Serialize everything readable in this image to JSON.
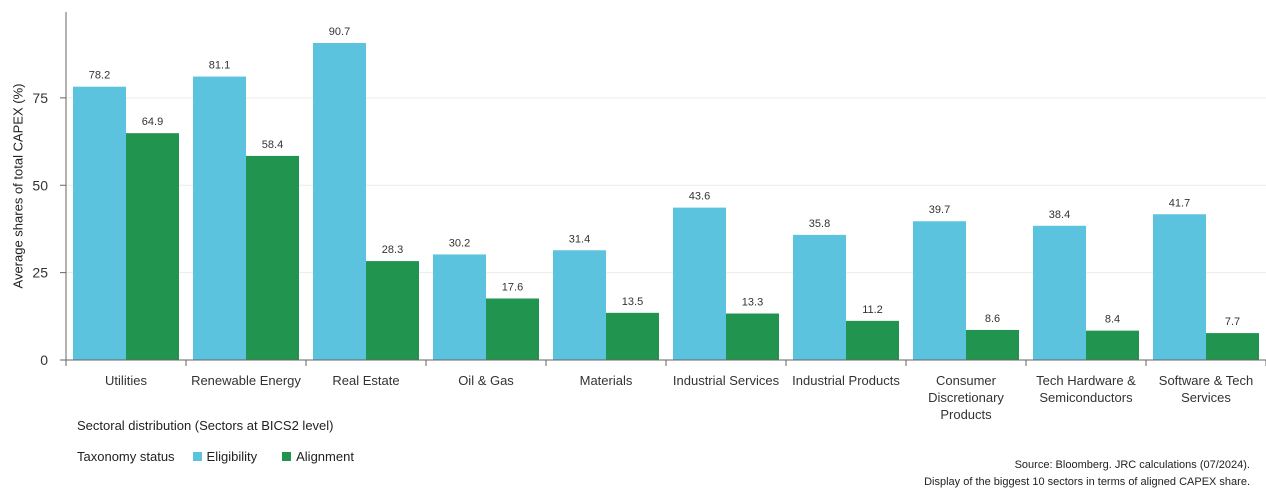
{
  "chart_data": {
    "type": "bar",
    "categories": [
      "Utilities",
      "Renewable Energy",
      "Real Estate",
      "Oil & Gas",
      "Materials",
      "Industrial Services",
      "Industrial Products",
      "Consumer Discretionary Products",
      "Tech Hardware & Semiconductors",
      "Software & Tech Services"
    ],
    "category_lines": [
      [
        "Utilities"
      ],
      [
        "Renewable Energy"
      ],
      [
        "Real Estate"
      ],
      [
        "Oil & Gas"
      ],
      [
        "Materials"
      ],
      [
        "Industrial Services"
      ],
      [
        "Industrial Products"
      ],
      [
        "Consumer",
        "Discretionary",
        "Products"
      ],
      [
        "Tech Hardware &",
        "Semiconductors"
      ],
      [
        "Software & Tech",
        "Services"
      ]
    ],
    "series": [
      {
        "name": "Eligibility",
        "color": "#5BC3DE",
        "values": [
          78.2,
          81.1,
          90.7,
          30.2,
          31.4,
          43.6,
          35.8,
          39.7,
          38.4,
          41.7
        ]
      },
      {
        "name": "Alignment",
        "color": "#21944F",
        "values": [
          64.9,
          58.4,
          28.3,
          17.6,
          13.5,
          13.3,
          11.2,
          8.6,
          8.4,
          7.7
        ]
      }
    ],
    "ylabel": "Average shares of total CAPEX (%)",
    "xlabel": "Sectoral distribution (Sectors at BICS2 level)",
    "yticks": [
      0,
      25,
      50,
      75
    ],
    "ylim": [
      0,
      100
    ],
    "grid": true,
    "legend": {
      "title": "Taxonomy status",
      "placement": "bottom-left"
    }
  },
  "source_lines": [
    "Source: Bloomberg. JRC calculations (07/2024).",
    "Display of the biggest 10 sectors in terms of aligned CAPEX share."
  ]
}
